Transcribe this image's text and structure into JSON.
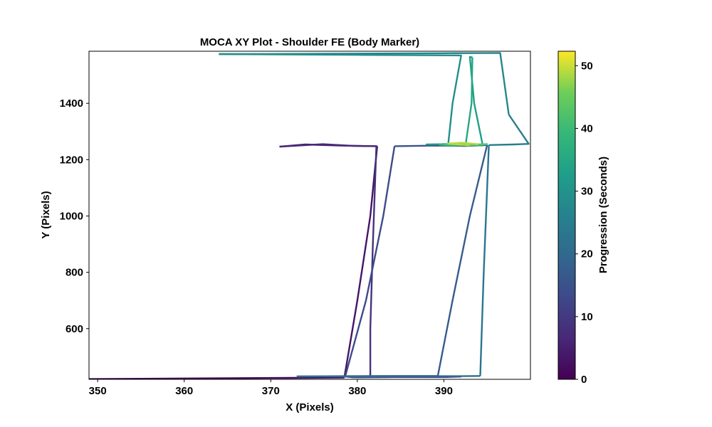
{
  "chart_data": {
    "type": "line",
    "title": "MOCA XY Plot - Shoulder FE (Body Marker)",
    "xlabel": "X (Pixels)",
    "ylabel": "Y (Pixels)",
    "xlim": [
      349,
      400
    ],
    "ylim": [
      420,
      1585
    ],
    "xticks": [
      "350",
      "360",
      "370",
      "380",
      "390"
    ],
    "yticks": [
      "600",
      "800",
      "1000",
      "1200",
      "1400"
    ],
    "grid": false,
    "colorbar": {
      "label": "Progression (Seconds)",
      "colormap": "viridis",
      "range": [
        0,
        52.3
      ],
      "ticks": [
        "0",
        "10",
        "20",
        "30",
        "40",
        "50"
      ]
    },
    "series": [
      {
        "t0": 0,
        "t1": 2,
        "x": [
          349,
          355,
          365,
          372,
          378.5
        ],
        "y": [
          421,
          422,
          424,
          425,
          426
        ]
      },
      {
        "t0": 2,
        "t1": 4,
        "x": [
          378.5,
          380,
          381.5,
          382.3
        ],
        "y": [
          426,
          700,
          1000,
          1248
        ]
      },
      {
        "t0": 4,
        "t1": 6,
        "x": [
          382.3,
          378,
          374,
          371
        ],
        "y": [
          1248,
          1250,
          1254,
          1246
        ]
      },
      {
        "t0": 6,
        "t1": 7.5,
        "x": [
          371,
          376,
          379.5,
          382.2
        ],
        "y": [
          1246,
          1255,
          1249,
          1248
        ]
      },
      {
        "t0": 7.5,
        "t1": 9,
        "x": [
          382.2,
          381.8,
          381.5,
          381.5
        ],
        "y": [
          1248,
          900,
          600,
          428
        ]
      },
      {
        "t0": 9,
        "t1": 10.5,
        "x": [
          381.5,
          386,
          390.3,
          392
        ],
        "y": [
          428,
          428,
          428,
          430
        ]
      },
      {
        "t0": 10.5,
        "t1": 12.5,
        "x": [
          392,
          384.5,
          379.5,
          378.6
        ],
        "y": [
          430,
          428,
          427,
          430
        ]
      },
      {
        "t0": 12.5,
        "t1": 14.5,
        "x": [
          378.6,
          381,
          383,
          384.3
        ],
        "y": [
          430,
          700,
          1000,
          1248
        ]
      },
      {
        "t0": 14.5,
        "t1": 16,
        "x": [
          384.3,
          389,
          392.5,
          395
        ],
        "y": [
          1248,
          1250,
          1249,
          1252
        ]
      },
      {
        "t0": 16,
        "t1": 18,
        "x": [
          395,
          393,
          391,
          389.3
        ],
        "y": [
          1252,
          1000,
          700,
          432
        ]
      },
      {
        "t0": 18,
        "t1": 20,
        "x": [
          389.3,
          383,
          378,
          373
        ],
        "y": [
          432,
          432,
          431,
          430
        ]
      },
      {
        "t0": 20,
        "t1": 22,
        "x": [
          373,
          385,
          392,
          394.2
        ],
        "y": [
          430,
          431,
          431,
          432
        ]
      },
      {
        "t0": 22,
        "t1": 24,
        "x": [
          394.2,
          394.6,
          395,
          395.2
        ],
        "y": [
          432,
          800,
          1100,
          1252
        ]
      },
      {
        "t0": 24,
        "t1": 26,
        "x": [
          395.2,
          398,
          399.8,
          397.5
        ],
        "y": [
          1252,
          1254,
          1256,
          1360
        ]
      },
      {
        "t0": 26,
        "t1": 28,
        "x": [
          397.5,
          396.5,
          390,
          375,
          364
        ],
        "y": [
          1360,
          1579,
          1578,
          1576,
          1575
        ]
      },
      {
        "t0": 28,
        "t1": 30,
        "x": [
          364,
          380,
          392,
          391,
          390.5
        ],
        "y": [
          1575,
          1572,
          1570,
          1400,
          1255
        ]
      },
      {
        "t0": 30,
        "t1": 32,
        "x": [
          390.5,
          388,
          392.5,
          394.5
        ],
        "y": [
          1255,
          1254,
          1256,
          1250
        ]
      },
      {
        "t0": 32,
        "t1": 34,
        "x": [
          394.5,
          393.5,
          393,
          393.3
        ],
        "y": [
          1250,
          1400,
          1565,
          1563
        ]
      },
      {
        "t0": 34,
        "t1": 36,
        "x": [
          393.3,
          393.2,
          392.5,
          395
        ],
        "y": [
          1563,
          1400,
          1250,
          1255
        ]
      },
      {
        "t0": 36,
        "t1": 40,
        "x": [
          395,
          391,
          389.5,
          390
        ],
        "y": [
          1255,
          1250,
          1253,
          1256
        ]
      },
      {
        "t0": 40,
        "t1": 46,
        "x": [
          390,
          392.5,
          395,
          393
        ],
        "y": [
          1256,
          1252,
          1255,
          1251
        ]
      },
      {
        "t0": 46,
        "t1": 52.3,
        "x": [
          393,
          390.5,
          392,
          394
        ],
        "y": [
          1251,
          1257,
          1260,
          1255
        ]
      }
    ]
  }
}
